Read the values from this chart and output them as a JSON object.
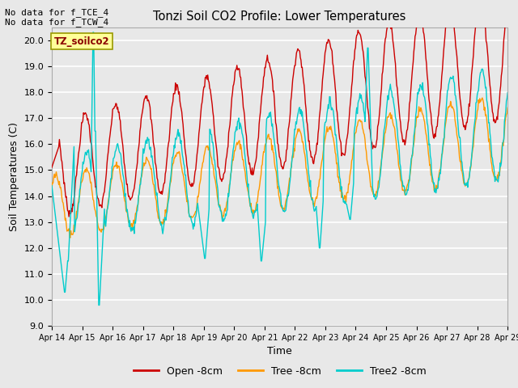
{
  "title": "Tonzi Soil CO2 Profile: Lower Temperatures",
  "xlabel": "Time",
  "ylabel": "Soil Temperatures (C)",
  "top_left_text": "No data for f_TCE_4\nNo data for f_TCW_4",
  "legend_box_text": "TZ_soilco2",
  "ylim": [
    9.0,
    20.5
  ],
  "yticks": [
    9.0,
    10.0,
    11.0,
    12.0,
    13.0,
    14.0,
    15.0,
    16.0,
    17.0,
    18.0,
    19.0,
    20.0
  ],
  "background_color": "#e8e8e8",
  "plot_bg_color": "#e8e8e8",
  "line_colors": {
    "open": "#cc0000",
    "tree": "#ff9900",
    "tree2": "#00cccc"
  },
  "legend_labels": [
    "Open -8cm",
    "Tree -8cm",
    "Tree2 -8cm"
  ],
  "x_tick_labels": [
    "Apr 14",
    "Apr 15",
    "Apr 16",
    "Apr 17",
    "Apr 18",
    "Apr 19",
    "Apr 20",
    "Apr 21",
    "Apr 22",
    "Apr 23",
    "Apr 24",
    "Apr 25",
    "Apr 26",
    "Apr 27",
    "Apr 28",
    "Apr 29"
  ],
  "days": 15,
  "pts_per_day": 48
}
